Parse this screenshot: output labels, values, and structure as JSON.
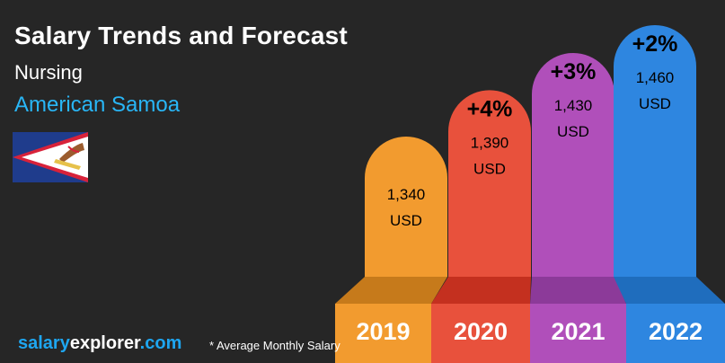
{
  "header": {
    "title": "Salary Trends and Forecast",
    "subtitle": "Nursing",
    "region": "American Samoa"
  },
  "brand": {
    "part1": "salary",
    "part2": "explorer",
    "part3": ".com",
    "color1": "#1ea6f0",
    "color2": "#ffffff",
    "color3": "#1ea6f0"
  },
  "footnote": "* Average Monthly Salary",
  "colors": {
    "background": "#262626",
    "region_text": "#29b6f6"
  },
  "flag_icon": "american-samoa-flag-icon",
  "chart_data": {
    "type": "bar",
    "categories": [
      "2019",
      "2020",
      "2021",
      "2022"
    ],
    "values": [
      1340,
      1390,
      1430,
      1460
    ],
    "value_labels": [
      "1,340",
      "1,390",
      "1,430",
      "1,460"
    ],
    "unit": "USD",
    "changes": [
      "",
      "+4%",
      "+3%",
      "+2%"
    ],
    "colors": [
      "#f29b2f",
      "#e8513c",
      "#b04fba",
      "#2e86e0"
    ],
    "dark_colors": [
      "#c67a1b",
      "#c4301f",
      "#8c3a99",
      "#1f6dbd"
    ]
  }
}
